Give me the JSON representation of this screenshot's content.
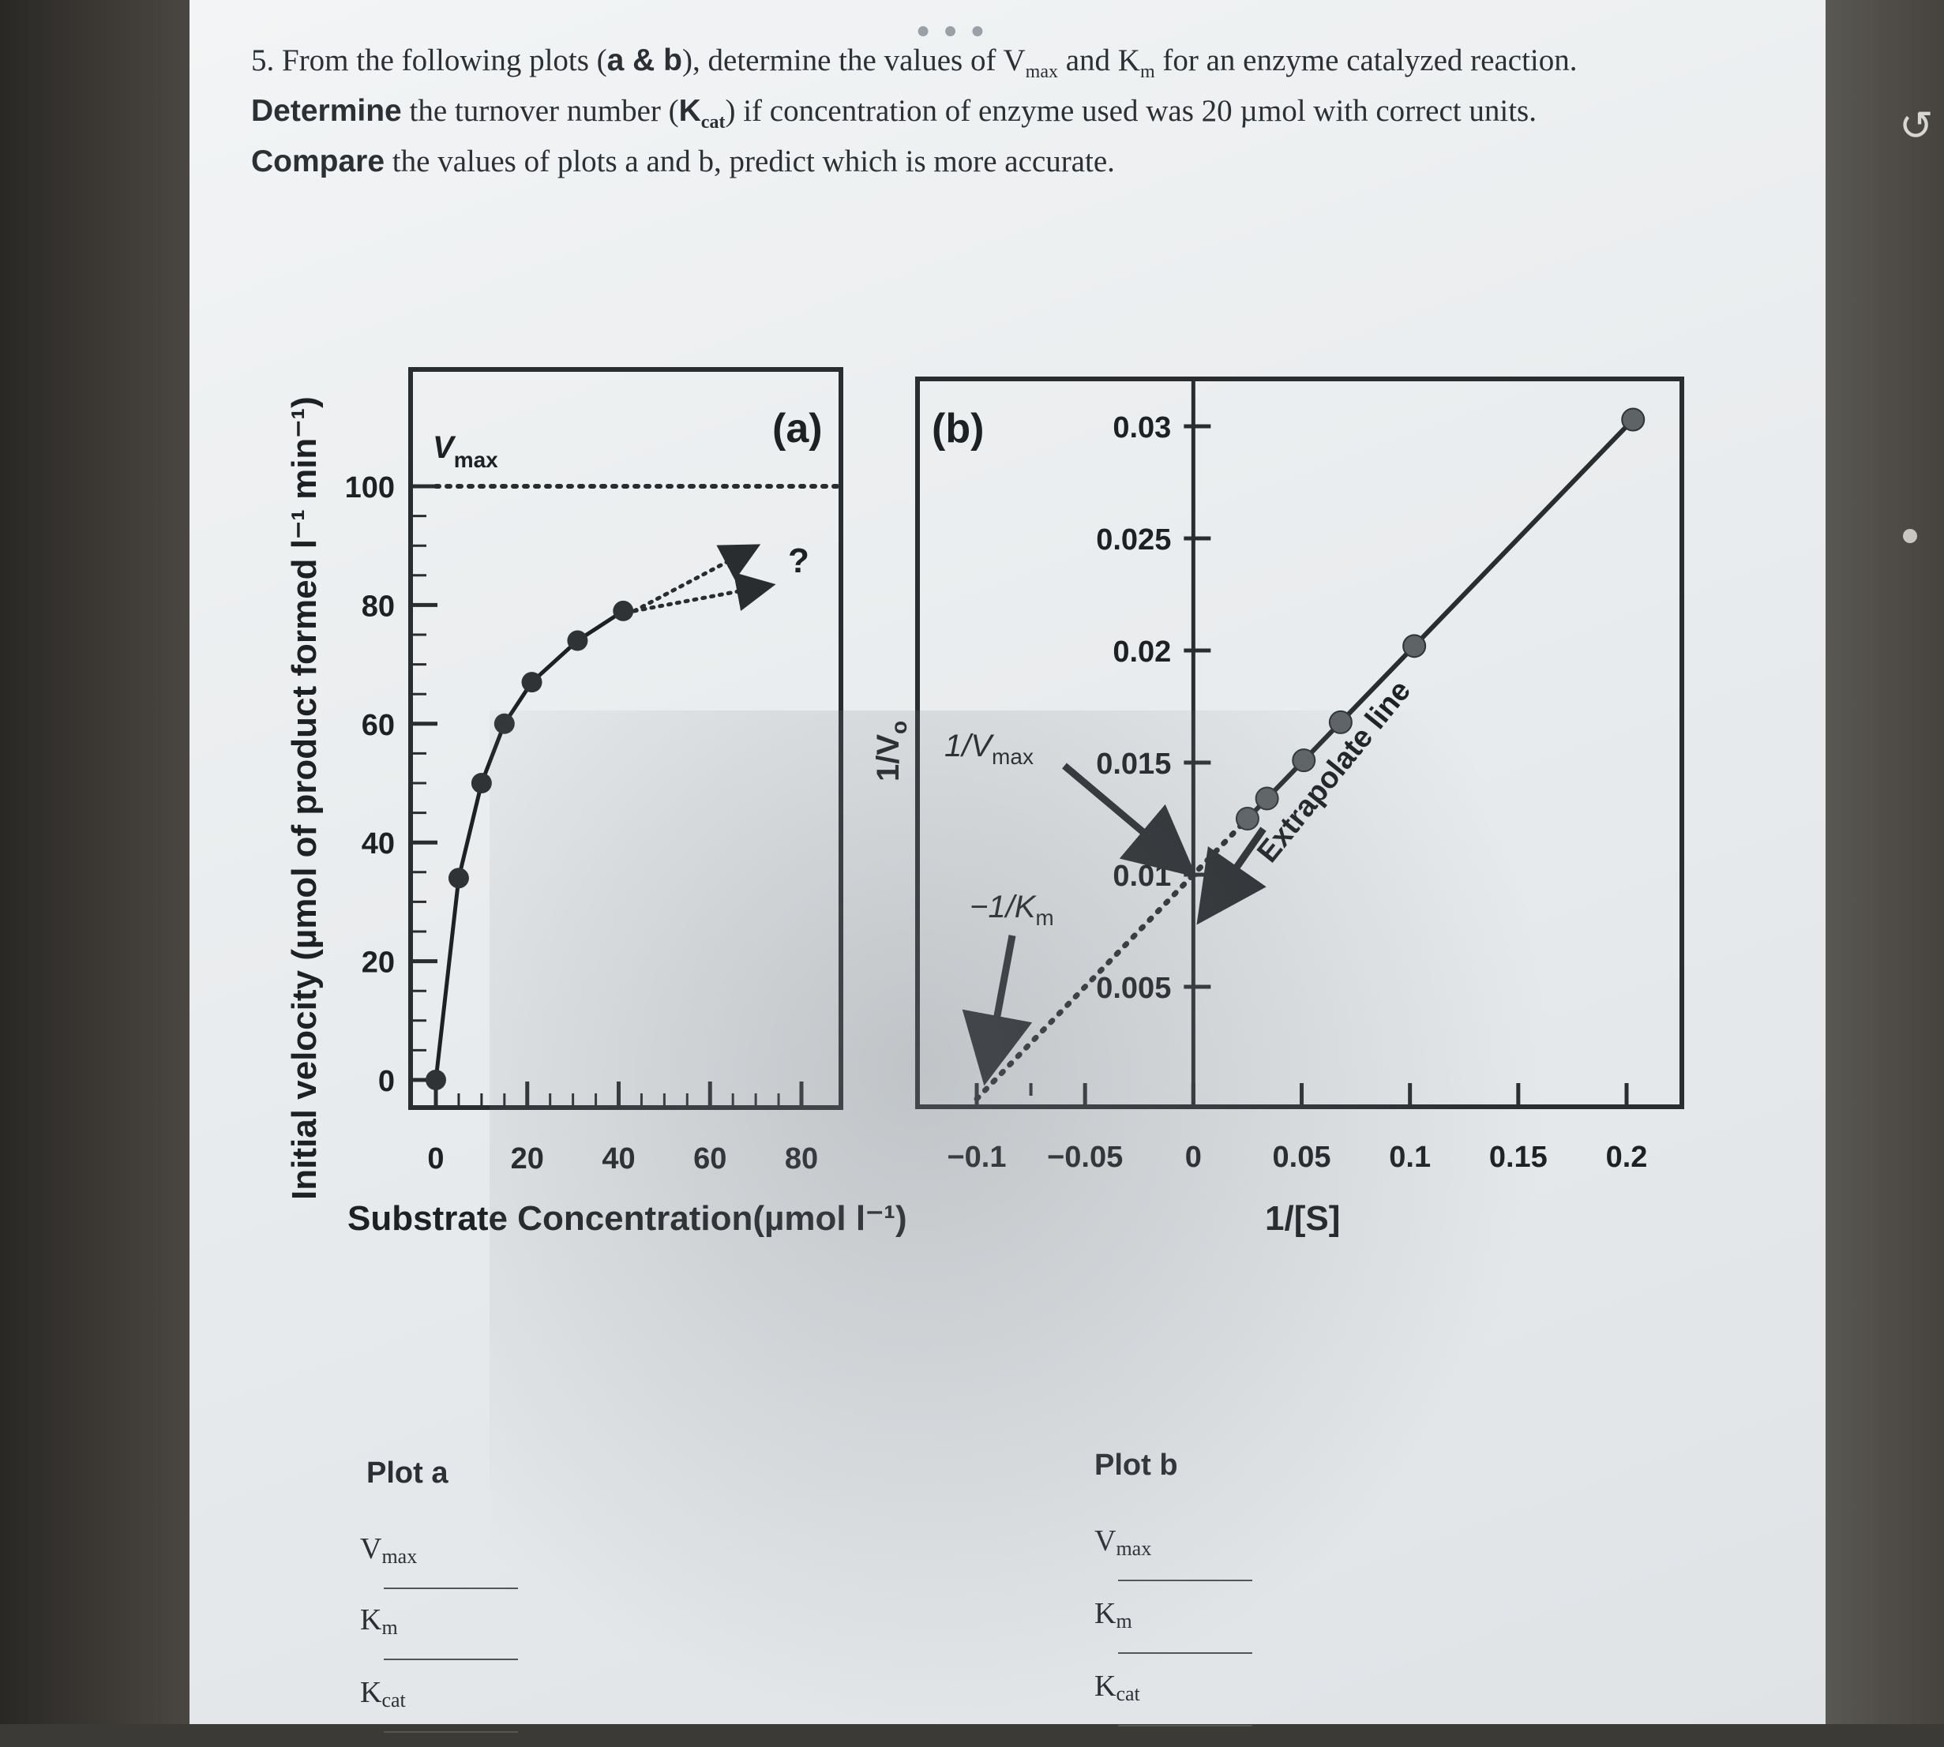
{
  "question": {
    "line1_prefix": "5. From the following plots (",
    "line1_bold": "a & b",
    "line1_mid": "), determine the values of V",
    "line1_sub1": "max",
    "line1_and": " and K",
    "line1_sub2": "m",
    "line1_suffix": " for an enzyme catalyzed reaction.",
    "line2_bold": "Determine",
    "line2_text": " the turnover number (",
    "line2_bold2": "K",
    "line2_sub": "cat",
    "line2_suffix": ") if concentration of enzyme used was 20 µmol with correct units.",
    "line3_bold": "Compare",
    "line3_text": " the values of plots a and b, predict which is more accurate."
  },
  "chart_data": [
    {
      "type": "line",
      "panel_label": "(a)",
      "xlabel": "Substrate Concentration(µmol l⁻¹)",
      "ylabel": "Initial velocity (µmol of product formed l⁻¹ min⁻¹)",
      "x_ticks": [
        "0",
        "20",
        "40",
        "60",
        "80"
      ],
      "y_ticks": [
        "0",
        "20",
        "40",
        "60",
        "80",
        "100"
      ],
      "xlim": [
        0,
        80
      ],
      "ylim": [
        0,
        100
      ],
      "series": [
        {
          "x": [
            0,
            5,
            10,
            15,
            21,
            31,
            41
          ],
          "y": [
            0,
            34,
            50,
            60,
            67,
            74,
            79
          ]
        }
      ],
      "vmax_label": "Vmax",
      "vmax_value": 100,
      "annotation": "?",
      "extrapolation_arrows": [
        {
          "from": [
            41,
            79
          ],
          "to": [
            68,
            89
          ]
        },
        {
          "from": [
            41,
            79
          ],
          "to": [
            71,
            83
          ]
        }
      ]
    },
    {
      "type": "line",
      "panel_label": "(b)",
      "xlabel": "1/[S]",
      "ylabel": "1/V₀",
      "x_ticks": [
        "-0.1",
        "-0.05",
        "0",
        "0.05",
        "0.1",
        "0.15",
        "0.2"
      ],
      "y_ticks": [
        "0.005",
        "0.01",
        "0.015",
        "0.02",
        "0.025",
        "0.03"
      ],
      "xlim": [
        -0.1,
        0.2
      ],
      "ylim": [
        0,
        0.03
      ],
      "series": [
        {
          "x": [
            0.025,
            0.034,
            0.051,
            0.068,
            0.102,
            0.203
          ],
          "y": [
            0.0125,
            0.0134,
            0.0151,
            0.0168,
            0.0202,
            0.0303
          ]
        }
      ],
      "extrapolated_line": {
        "x": [
          -0.1,
          0.025
        ],
        "y": [
          0,
          0.0125
        ]
      },
      "line_label": "Extrapolate line",
      "annotations": [
        "1/Vmax",
        "-1/Km"
      ]
    }
  ],
  "answers": {
    "plot_a_title": "Plot a",
    "plot_b_title": "Plot b",
    "vmax_label": "V",
    "vmax_sub": "max",
    "km_label": "K",
    "km_sub": "m",
    "kcat_label": "K",
    "kcat_sub": "cat"
  }
}
